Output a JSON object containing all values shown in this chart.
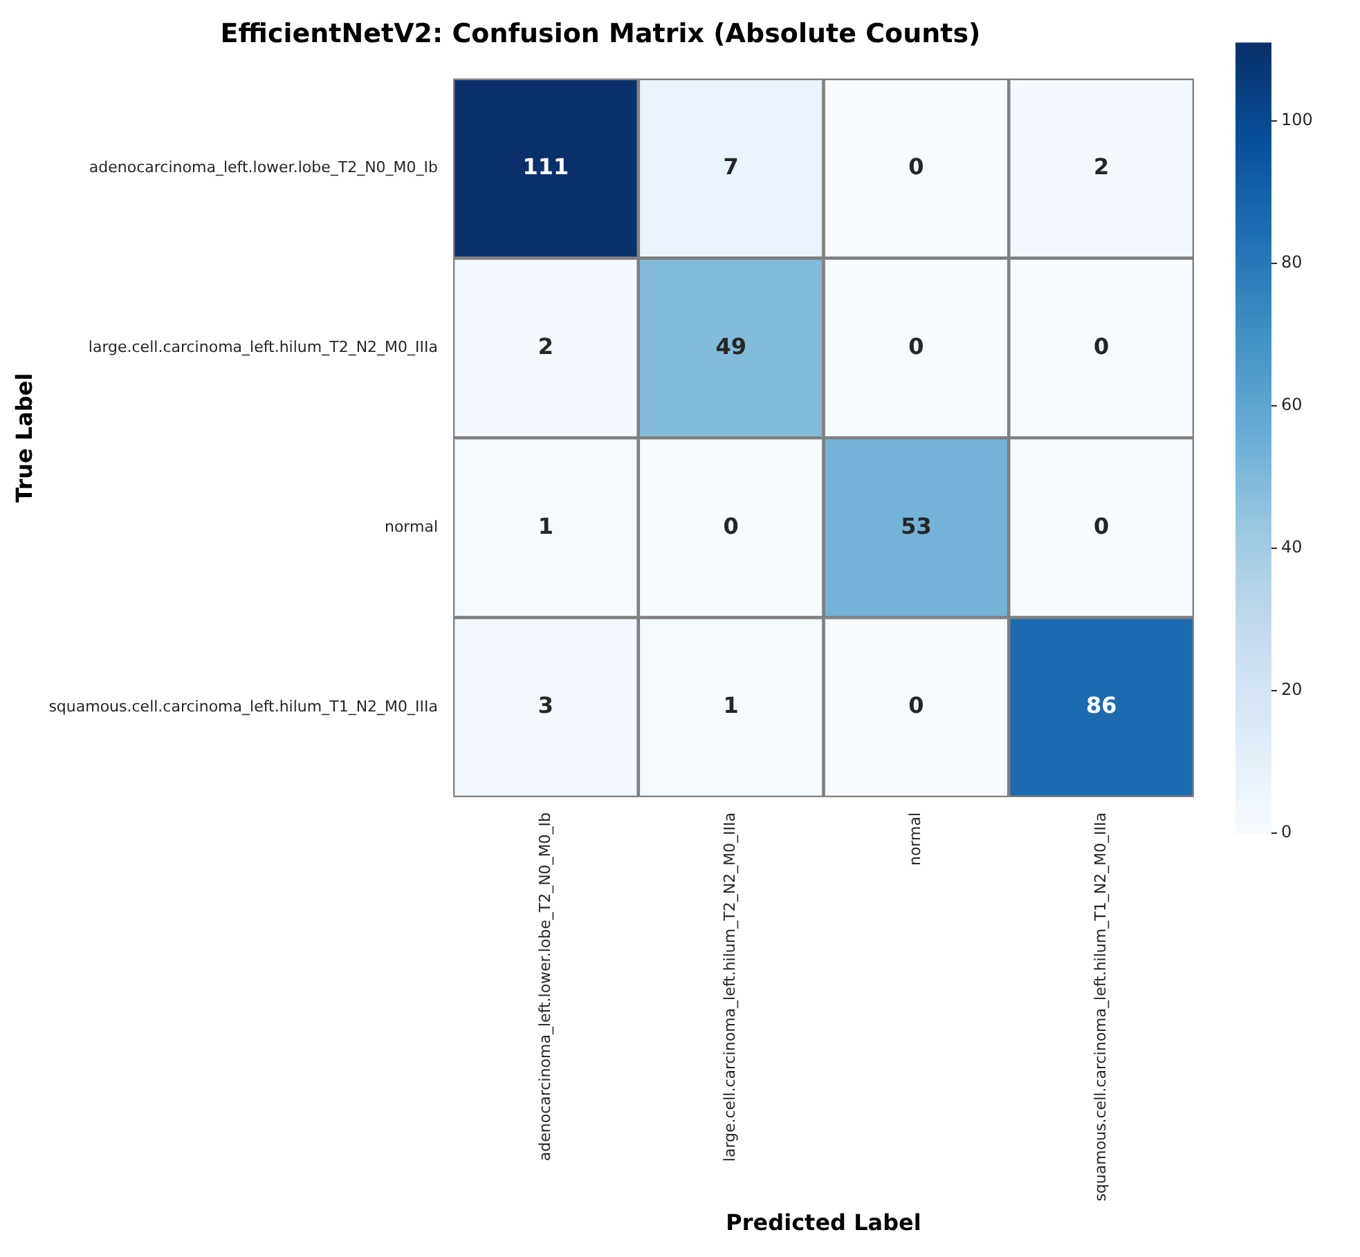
{
  "chart_data": {
    "type": "heatmap",
    "title": "EfficientNetV2: Confusion Matrix (Absolute Counts)",
    "xlabel": "Predicted Label",
    "ylabel": "True Label",
    "categories": [
      "adenocarcinoma_left.lower.lobe_T2_N0_M0_Ib",
      "large.cell.carcinoma_left.hilum_T2_N2_M0_IIIa",
      "normal",
      "squamous.cell.carcinoma_left.hilum_T1_N2_M0_IIIa"
    ],
    "y_categories": [
      "adenocarcinoma_left.lower.lobe_T2_N0_M0_Ib",
      "large.cell.carcinoma_left.hilum_T2_N2_M0_IIIa",
      "normal",
      "squamous.cell.carcinoma_left.hilum_T1_N2_M0_IIIa"
    ],
    "cells": [
      [
        111,
        7,
        0,
        2
      ],
      [
        2,
        49,
        0,
        0
      ],
      [
        1,
        0,
        53,
        0
      ],
      [
        3,
        1,
        0,
        86
      ]
    ],
    "clim": [
      0,
      111
    ],
    "cticks": [
      0,
      20,
      40,
      60,
      80,
      100
    ],
    "data_labels": true
  }
}
